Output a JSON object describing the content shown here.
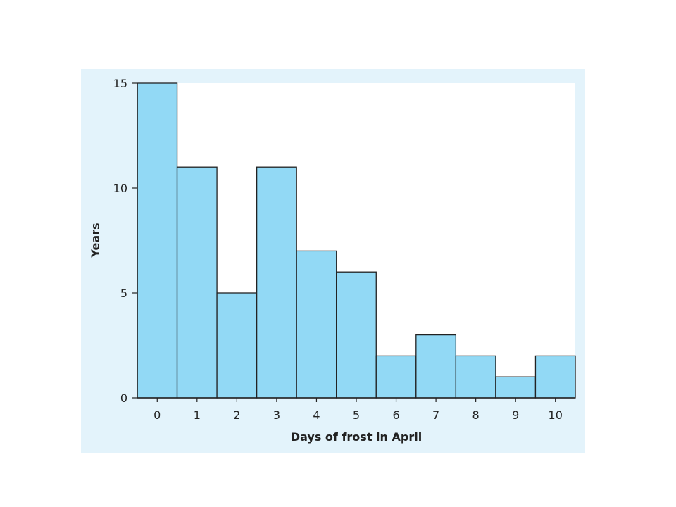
{
  "chart_data": {
    "type": "bar",
    "title": "",
    "xlabel": "Days of frost in April",
    "ylabel": "Years",
    "categories": [
      "0",
      "1",
      "2",
      "3",
      "4",
      "5",
      "6",
      "7",
      "8",
      "9",
      "10"
    ],
    "values": [
      15,
      11,
      5,
      11,
      7,
      6,
      2,
      3,
      2,
      1,
      2
    ],
    "ylim": [
      0,
      15
    ],
    "yticks": [
      "0",
      "5",
      "10",
      "15"
    ],
    "grid": false,
    "legend": "none",
    "colors": {
      "bar_fill": "#92d9f5",
      "bar_stroke": "#222222",
      "panel_background": "#e3f3fb",
      "plot_background": "#ffffff"
    }
  }
}
